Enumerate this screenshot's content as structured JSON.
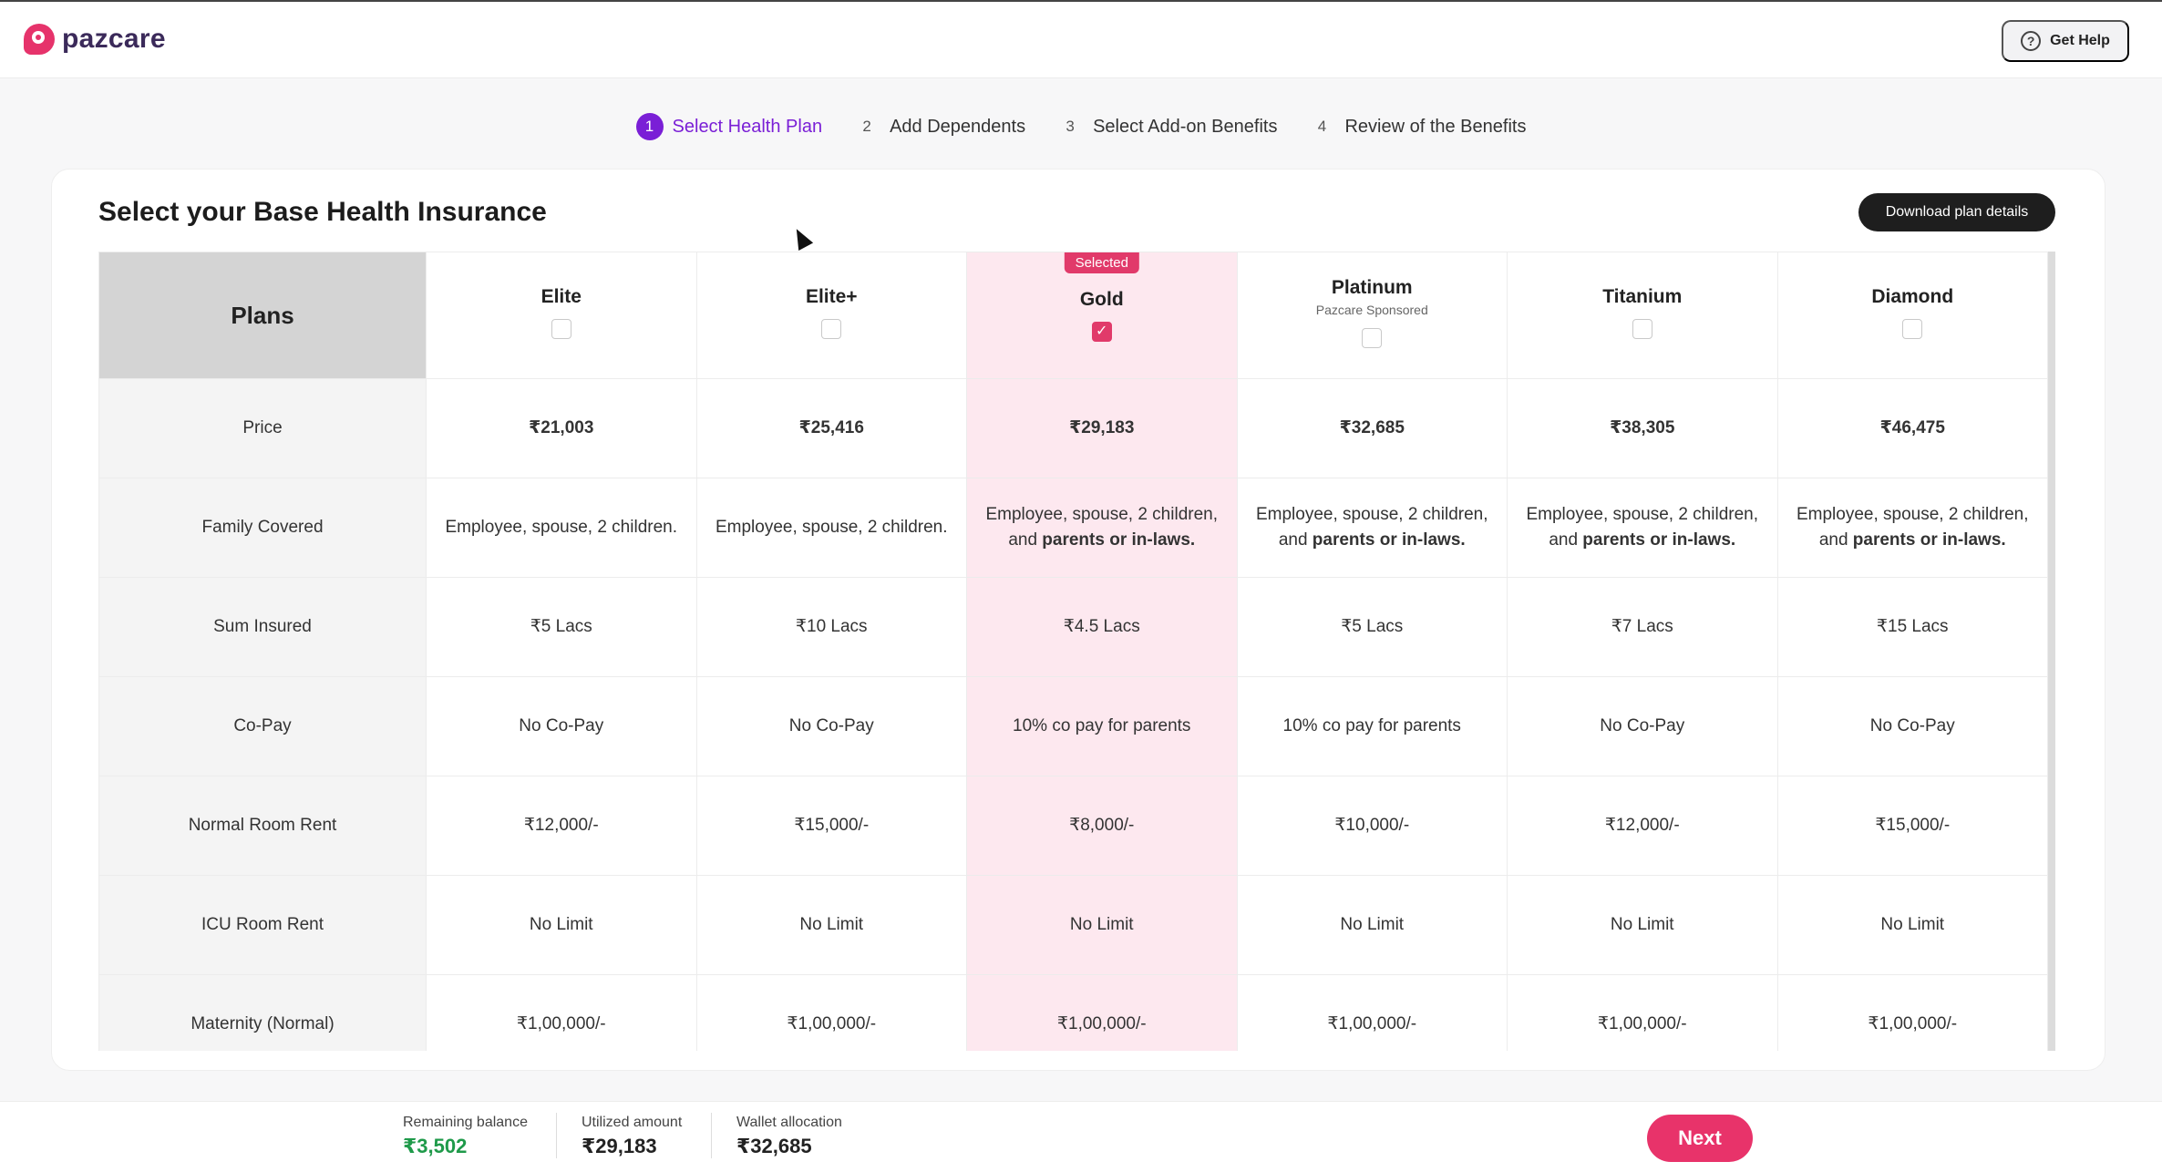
{
  "header": {
    "brand": "pazcare",
    "help_label": "Get Help"
  },
  "stepper": [
    {
      "num": "1",
      "label": "Select Health Plan"
    },
    {
      "num": "2",
      "label": "Add Dependents"
    },
    {
      "num": "3",
      "label": "Select Add-on Benefits"
    },
    {
      "num": "4",
      "label": "Review of the Benefits"
    }
  ],
  "main": {
    "title": "Select your Base Health Insurance",
    "download_label": "Download plan details",
    "plans_header": "Plans",
    "selected_badge": "Selected"
  },
  "plans": [
    {
      "name": "Elite",
      "sub": "",
      "selected": false
    },
    {
      "name": "Elite+",
      "sub": "",
      "selected": false
    },
    {
      "name": "Gold",
      "sub": "",
      "selected": true
    },
    {
      "name": "Platinum",
      "sub": "Pazcare Sponsored",
      "selected": false
    },
    {
      "name": "Titanium",
      "sub": "",
      "selected": false
    },
    {
      "name": "Diamond",
      "sub": "",
      "selected": false
    }
  ],
  "rows": [
    {
      "label": "Price",
      "values": [
        "₹21,003",
        "₹25,416",
        "₹29,183",
        "₹32,685",
        "₹38,305",
        "₹46,475"
      ]
    },
    {
      "label": "Family Covered",
      "values": [
        {
          "plain": "Employee, spouse, 2 children.",
          "bold": ""
        },
        {
          "plain": "Employee, spouse, 2 children.",
          "bold": ""
        },
        {
          "plain": "Employee, spouse, 2 children, and",
          "bold": "parents or in-laws."
        },
        {
          "plain": "Employee, spouse, 2 children, and",
          "bold": "parents or in-laws."
        },
        {
          "plain": "Employee, spouse, 2 children, and",
          "bold": "parents or in-laws."
        },
        {
          "plain": "Employee, spouse, 2 children, and",
          "bold": "parents or in-laws."
        }
      ]
    },
    {
      "label": "Sum Insured",
      "values": [
        "₹5 Lacs",
        "₹10 Lacs",
        "₹4.5 Lacs",
        "₹5 Lacs",
        "₹7 Lacs",
        "₹15 Lacs"
      ]
    },
    {
      "label": "Co-Pay",
      "values": [
        "No Co-Pay",
        "No Co-Pay",
        "10% co pay for parents",
        "10% co pay for parents",
        "No Co-Pay",
        "No Co-Pay"
      ]
    },
    {
      "label": "Normal Room Rent",
      "values": [
        "₹12,000/-",
        "₹15,000/-",
        "₹8,000/-",
        "₹10,000/-",
        "₹12,000/-",
        "₹15,000/-"
      ]
    },
    {
      "label": "ICU Room Rent",
      "values": [
        "No Limit",
        "No Limit",
        "No Limit",
        "No Limit",
        "No Limit",
        "No Limit"
      ]
    },
    {
      "label": "Maternity (Normal)",
      "values": [
        "₹1,00,000/-",
        "₹1,00,000/-",
        "₹1,00,000/-",
        "₹1,00,000/-",
        "₹1,00,000/-",
        "₹1,00,000/-"
      ]
    }
  ],
  "footer": {
    "remaining_label": "Remaining balance",
    "remaining_value": "₹3,502",
    "utilized_label": "Utilized amount",
    "utilized_value": "₹29,183",
    "wallet_label": "Wallet allocation",
    "wallet_value": "₹32,685",
    "next_label": "Next"
  },
  "colors": {
    "accent": "#7a1fd6",
    "brand_pink": "#e13a6a",
    "selected_column": "#fde8ef",
    "green": "#1f9a4a"
  },
  "icons": {
    "logo": "pazcare-logo-icon",
    "help": "help-circle-icon",
    "check": "check-icon",
    "cursor": "mouse-cursor-icon"
  }
}
